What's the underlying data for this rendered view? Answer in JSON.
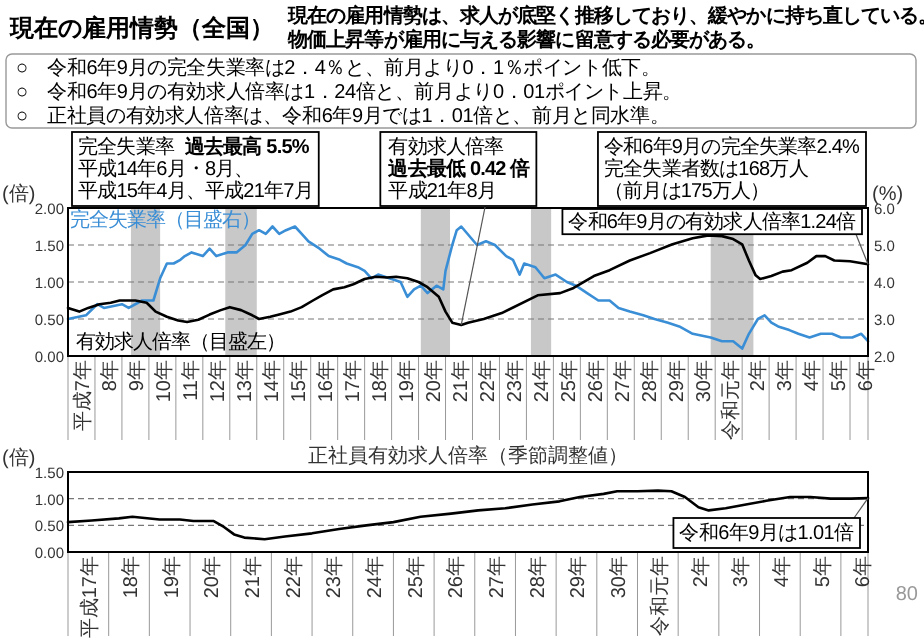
{
  "chart_data": [
    {
      "type": "line",
      "title": "現在の雇用情勢（全国）",
      "subtitle": "現在の雇用情勢は、求人が底堅く推移しており、緩やかに持ち直している。",
      "ylabel": "(倍)",
      "y2label": "(%)",
      "grid": "y",
      "line_style": "solid",
      "xlim": [
        "1995-01",
        "2024-09"
      ],
      "ylim": [
        0,
        2
      ],
      "y2lim": [
        2,
        6
      ],
      "yticks": [
        {
          "value": 0,
          "label": "0.00"
        },
        {
          "value": 0.5,
          "label": "0.50"
        },
        {
          "value": 1,
          "label": "1.00"
        },
        {
          "value": 1.5,
          "label": "1.50"
        },
        {
          "value": 2,
          "label": "2.00"
        }
      ],
      "y2ticks": [
        {
          "value": 2,
          "label": "2.0"
        },
        {
          "value": 3,
          "label": "3.0"
        },
        {
          "value": 4,
          "label": "4.0"
        },
        {
          "value": 5,
          "label": "5.0"
        },
        {
          "value": 6,
          "label": "6.0"
        }
      ],
      "xticks": [
        {
          "value": "1995-07",
          "label": "平成7年"
        },
        {
          "value": "1996-07",
          "label": "8年"
        },
        {
          "value": "1997-07",
          "label": "9年"
        },
        {
          "value": "1998-07",
          "label": "10年"
        },
        {
          "value": "1999-07",
          "label": "11年"
        },
        {
          "value": "2000-07",
          "label": "12年"
        },
        {
          "value": "2001-07",
          "label": "13年"
        },
        {
          "value": "2002-07",
          "label": "14年"
        },
        {
          "value": "2003-07",
          "label": "15年"
        },
        {
          "value": "2004-07",
          "label": "16年"
        },
        {
          "value": "2005-07",
          "label": "17年"
        },
        {
          "value": "2006-07",
          "label": "18年"
        },
        {
          "value": "2007-07",
          "label": "19年"
        },
        {
          "value": "2008-07",
          "label": "20年"
        },
        {
          "value": "2009-07",
          "label": "21年"
        },
        {
          "value": "2010-07",
          "label": "22年"
        },
        {
          "value": "2011-07",
          "label": "23年"
        },
        {
          "value": "2012-07",
          "label": "24年"
        },
        {
          "value": "2013-07",
          "label": "25年"
        },
        {
          "value": "2014-07",
          "label": "26年"
        },
        {
          "value": "2015-07",
          "label": "27年"
        },
        {
          "value": "2016-07",
          "label": "28年"
        },
        {
          "value": "2017-07",
          "label": "29年"
        },
        {
          "value": "2018-07",
          "label": "30年"
        },
        {
          "value": "2019-07",
          "label": "令和元年"
        },
        {
          "value": "2020-07",
          "label": "2年"
        },
        {
          "value": "2021-07",
          "label": "3年"
        },
        {
          "value": "2022-07",
          "label": "4年"
        },
        {
          "value": "2023-07",
          "label": "5年"
        },
        {
          "value": "2024-07",
          "label": "6年"
        }
      ],
      "bands": [
        {
          "axis": "x",
          "from": "1997-05",
          "to": "1998-06",
          "color": "#c8c8c8"
        },
        {
          "axis": "x",
          "from": "2000-11",
          "to": "2002-01",
          "color": "#c8c8c8"
        },
        {
          "axis": "x",
          "from": "2008-02",
          "to": "2009-03",
          "color": "#c8c8c8"
        },
        {
          "axis": "x",
          "from": "2012-03",
          "to": "2012-12",
          "color": "#c8c8c8"
        },
        {
          "axis": "x",
          "from": "2018-11",
          "to": "2020-06",
          "color": "#c8c8c8"
        }
      ],
      "series": [
        {
          "name": "完全失業率（目盛右）",
          "color": "#3a8ed6",
          "axis": "y2",
          "x": [
            "1995-01",
            "1995-09",
            "1996-02",
            "1996-05",
            "1997-01",
            "1997-04",
            "1997-10",
            "1998-03",
            "1998-06",
            "1998-09",
            "1998-12",
            "1999-03",
            "1999-05",
            "1999-08",
            "2000-01",
            "2000-04",
            "2000-07",
            "2000-12",
            "2001-04",
            "2001-08",
            "2001-11",
            "2002-02",
            "2002-05",
            "2002-08",
            "2002-11",
            "2003-02",
            "2003-06",
            "2003-09",
            "2003-12",
            "2004-05",
            "2004-09",
            "2005-02",
            "2005-05",
            "2005-10",
            "2006-01",
            "2006-04",
            "2006-07",
            "2006-12",
            "2007-05",
            "2007-08",
            "2007-11",
            "2008-02",
            "2008-05",
            "2008-09",
            "2008-12",
            "2009-01",
            "2009-04",
            "2009-06",
            "2009-08",
            "2010-03",
            "2010-07",
            "2010-11",
            "2011-04",
            "2011-07",
            "2011-10",
            "2011-12",
            "2012-05",
            "2012-09",
            "2013-02",
            "2013-07",
            "2013-11",
            "2014-04",
            "2014-09",
            "2015-02",
            "2015-06",
            "2015-11",
            "2016-05",
            "2016-10",
            "2017-04",
            "2017-09",
            "2018-03",
            "2018-11",
            "2019-04",
            "2019-09",
            "2020-01",
            "2020-04",
            "2020-08",
            "2020-11",
            "2021-02",
            "2021-05",
            "2021-10",
            "2022-02",
            "2022-07",
            "2022-12",
            "2023-05",
            "2023-09",
            "2024-02",
            "2024-06",
            "2024-09"
          ],
          "values": [
            3.0,
            3.1,
            3.4,
            3.3,
            3.4,
            3.3,
            3.5,
            3.5,
            4.1,
            4.5,
            4.5,
            4.6,
            4.7,
            4.8,
            4.7,
            4.9,
            4.7,
            4.8,
            4.8,
            5.0,
            5.3,
            5.4,
            5.3,
            5.5,
            5.3,
            5.4,
            5.5,
            5.3,
            5.1,
            4.9,
            4.7,
            4.6,
            4.5,
            4.4,
            4.3,
            4.1,
            4.2,
            4.1,
            4.0,
            3.6,
            3.8,
            3.9,
            3.7,
            3.9,
            3.8,
            4.3,
            5.0,
            5.4,
            5.5,
            5.0,
            5.1,
            5.0,
            4.7,
            4.6,
            4.2,
            4.5,
            4.4,
            4.1,
            4.2,
            4.0,
            3.9,
            3.7,
            3.5,
            3.5,
            3.3,
            3.2,
            3.1,
            3.0,
            2.9,
            2.8,
            2.6,
            2.5,
            2.4,
            2.4,
            2.2,
            2.6,
            3.0,
            3.1,
            2.9,
            2.8,
            2.7,
            2.6,
            2.5,
            2.6,
            2.6,
            2.5,
            2.5,
            2.6,
            2.4
          ]
        },
        {
          "name": "有効求人倍率（目盛左）",
          "color": "#000000",
          "x": [
            "1995-01",
            "1995-06",
            "1995-10",
            "1996-03",
            "1996-08",
            "1996-12",
            "1997-07",
            "1997-12",
            "1998-04",
            "1998-09",
            "1999-02",
            "1999-06",
            "1999-11",
            "2000-04",
            "2000-09",
            "2001-01",
            "2001-06",
            "2001-11",
            "2002-02",
            "2002-07",
            "2002-11",
            "2003-04",
            "2003-09",
            "2004-02",
            "2004-06",
            "2004-11",
            "2005-04",
            "2005-08",
            "2006-01",
            "2006-06",
            "2006-11",
            "2007-03",
            "2007-08",
            "2008-01",
            "2008-05",
            "2008-10",
            "2009-01",
            "2009-04",
            "2009-08",
            "2009-11",
            "2010-06",
            "2011-02",
            "2012-06",
            "2013-04",
            "2013-10",
            "2014-07",
            "2015-02",
            "2015-11",
            "2016-08",
            "2017-06",
            "2018-03",
            "2018-10",
            "2019-04",
            "2019-09",
            "2020-01",
            "2020-04",
            "2020-07",
            "2020-09",
            "2021-02",
            "2021-07",
            "2021-11",
            "2022-06",
            "2022-10",
            "2023-02",
            "2023-06",
            "2024-01",
            "2024-05",
            "2024-09"
          ],
          "values": [
            0.65,
            0.6,
            0.65,
            0.7,
            0.72,
            0.75,
            0.75,
            0.72,
            0.6,
            0.53,
            0.48,
            0.46,
            0.49,
            0.56,
            0.62,
            0.66,
            0.62,
            0.55,
            0.5,
            0.53,
            0.56,
            0.6,
            0.66,
            0.75,
            0.82,
            0.9,
            0.93,
            0.97,
            1.04,
            1.07,
            1.06,
            1.07,
            1.05,
            1.0,
            0.93,
            0.8,
            0.6,
            0.45,
            0.42,
            0.45,
            0.5,
            0.58,
            0.82,
            0.85,
            0.92,
            1.08,
            1.16,
            1.29,
            1.39,
            1.51,
            1.59,
            1.63,
            1.62,
            1.58,
            1.51,
            1.29,
            1.09,
            1.04,
            1.08,
            1.14,
            1.16,
            1.26,
            1.35,
            1.35,
            1.29,
            1.28,
            1.26,
            1.24
          ]
        }
      ],
      "annotations": [
        "○　令和6年9月の完全失業率は2．4％と、前月より0．1％ポイント低下。",
        "○　令和6年9月の有効求人倍率は1．24倍と、前月より0．01ポイント上昇。",
        "○　正社員の有効求人倍率は、令和6年9月では1．01倍と、前月と同水準。",
        "物価上昇等が雇用に与える影響に留意する必要がある。",
        "完全失業率",
        "過去最高 5.5%",
        "平成14年6月・8月、",
        "平成15年4月、平成21年7月",
        "有効求人倍率",
        {
          "text": "過去最低 0.42 倍",
          "x": "2009-08",
          "y": 0.42
        },
        "平成21年8月",
        "令和6年9月の完全失業率2.4%",
        "完全失業者数は168万人",
        "（前月は175万人）",
        {
          "text": "令和6年9月の有効求人倍率1.24倍",
          "x": "2024-09",
          "y": 1.24
        }
      ]
    },
    {
      "type": "line",
      "title": "正社員有効求人倍率（季節調整値）",
      "ylabel": "(倍)",
      "grid": "y",
      "line_style": "solid",
      "color": "#000000",
      "xlim": [
        "2005-01",
        "2024-09"
      ],
      "ylim": [
        0,
        1.5
      ],
      "yticks": [
        {
          "value": 0,
          "label": "0.00"
        },
        {
          "value": 0.5,
          "label": "0.50"
        },
        {
          "value": 1,
          "label": "1.00"
        },
        {
          "value": 1.5,
          "label": "1.50"
        }
      ],
      "xticks": [
        {
          "value": "2005-07",
          "label": "平成17年"
        },
        {
          "value": "2006-07",
          "label": "18年"
        },
        {
          "value": "2007-07",
          "label": "19年"
        },
        {
          "value": "2008-07",
          "label": "20年"
        },
        {
          "value": "2009-07",
          "label": "21年"
        },
        {
          "value": "2010-07",
          "label": "22年"
        },
        {
          "value": "2011-07",
          "label": "23年"
        },
        {
          "value": "2012-07",
          "label": "24年"
        },
        {
          "value": "2013-07",
          "label": "25年"
        },
        {
          "value": "2014-07",
          "label": "26年"
        },
        {
          "value": "2015-07",
          "label": "27年"
        },
        {
          "value": "2016-07",
          "label": "28年"
        },
        {
          "value": "2017-07",
          "label": "29年"
        },
        {
          "value": "2018-07",
          "label": "30年"
        },
        {
          "value": "2019-07",
          "label": "令和元年"
        },
        {
          "value": "2020-07",
          "label": "2年"
        },
        {
          "value": "2021-07",
          "label": "3年"
        },
        {
          "value": "2022-07",
          "label": "4年"
        },
        {
          "value": "2023-07",
          "label": "5年"
        },
        {
          "value": "2024-07",
          "label": "6年"
        }
      ],
      "x": [
        "2005-01",
        "2005-08",
        "2006-04",
        "2006-08",
        "2007-04",
        "2007-10",
        "2008-02",
        "2008-08",
        "2008-11",
        "2009-02",
        "2009-05",
        "2009-11",
        "2010-05",
        "2011-01",
        "2011-09",
        "2012-05",
        "2013-01",
        "2013-09",
        "2014-06",
        "2015-02",
        "2015-10",
        "2016-06",
        "2017-02",
        "2017-08",
        "2018-03",
        "2018-07",
        "2019-01",
        "2019-07",
        "2019-11",
        "2020-03",
        "2020-07",
        "2020-10",
        "2021-03",
        "2021-09",
        "2022-03",
        "2022-10",
        "2023-04",
        "2023-10",
        "2024-04",
        "2024-09"
      ],
      "values": [
        0.56,
        0.59,
        0.63,
        0.66,
        0.61,
        0.61,
        0.58,
        0.58,
        0.47,
        0.33,
        0.27,
        0.24,
        0.29,
        0.35,
        0.43,
        0.5,
        0.56,
        0.66,
        0.72,
        0.78,
        0.82,
        0.89,
        0.95,
        1.03,
        1.09,
        1.14,
        1.14,
        1.15,
        1.14,
        1.03,
        0.84,
        0.78,
        0.82,
        0.89,
        0.96,
        1.03,
        1.03,
        1.0,
        1.0,
        1.01
      ],
      "annotations": [
        {
          "text": "令和6年9月は1.01倍",
          "x": "2024-09",
          "y": 1.01
        },
        "80"
      ]
    }
  ]
}
